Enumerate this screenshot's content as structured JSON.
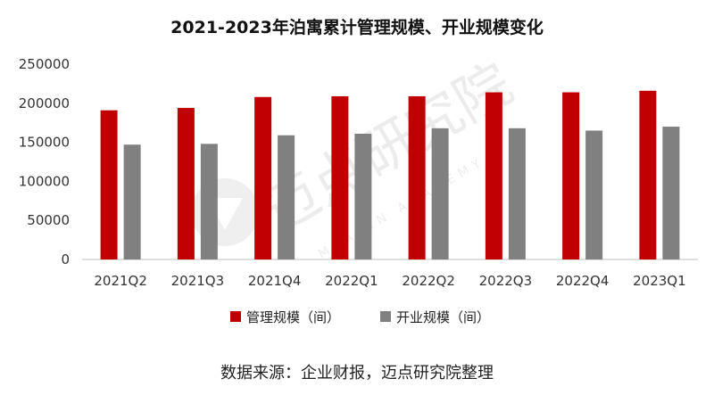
{
  "chart_data": {
    "type": "bar",
    "title": "2021-2023年泊寓累计管理规模、开业规模变化",
    "categories": [
      "2021Q2",
      "2021Q3",
      "2021Q4",
      "2022Q1",
      "2022Q2",
      "2022Q3",
      "2022Q4",
      "2023Q1"
    ],
    "series": [
      {
        "name": "管理规模（间）",
        "color": "#c00000",
        "values": [
          191000,
          194000,
          208000,
          209000,
          209000,
          214000,
          214000,
          216000
        ]
      },
      {
        "name": "开业规模（间）",
        "color": "#808080",
        "values": [
          147000,
          148000,
          159000,
          161000,
          168000,
          168000,
          165000,
          170000
        ]
      }
    ],
    "ylim": [
      0,
      250000
    ],
    "yticks": [
      0,
      50000,
      100000,
      150000,
      200000,
      250000
    ],
    "xlabel": "",
    "ylabel": "",
    "grid": false,
    "legend_position": "bottom"
  },
  "source_note": "数据来源：企业财报，迈点研究院整理",
  "watermark": {
    "text_cn": "迈点研究院",
    "text_en": "MEADIN ACADEMY"
  }
}
